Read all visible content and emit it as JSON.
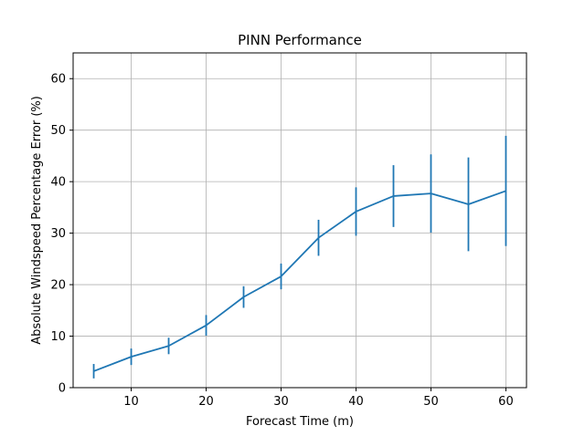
{
  "chart_data": {
    "type": "line",
    "title": "PINN Performance",
    "xlabel": "Forecast Time (m)",
    "ylabel": "Absolute Windspeed Percentage Error (%)",
    "xlim": [
      2.25,
      62.75
    ],
    "ylim": [
      0,
      65
    ],
    "xticks": [
      10,
      20,
      30,
      40,
      50,
      60
    ],
    "yticks": [
      0,
      10,
      20,
      30,
      40,
      50,
      60
    ],
    "grid": true,
    "color": "#1f77b4",
    "series": [
      {
        "x": [
          5,
          10,
          15,
          20,
          25,
          30,
          35,
          40,
          45,
          50,
          55,
          60
        ],
        "y": [
          3.2,
          6.0,
          8.1,
          12.1,
          17.6,
          21.6,
          29.1,
          34.2,
          37.2,
          37.7,
          35.6,
          38.2
        ],
        "error": [
          1.4,
          1.6,
          1.6,
          2.0,
          2.1,
          2.5,
          3.5,
          4.7,
          6.0,
          7.6,
          9.1,
          10.7
        ]
      }
    ]
  }
}
